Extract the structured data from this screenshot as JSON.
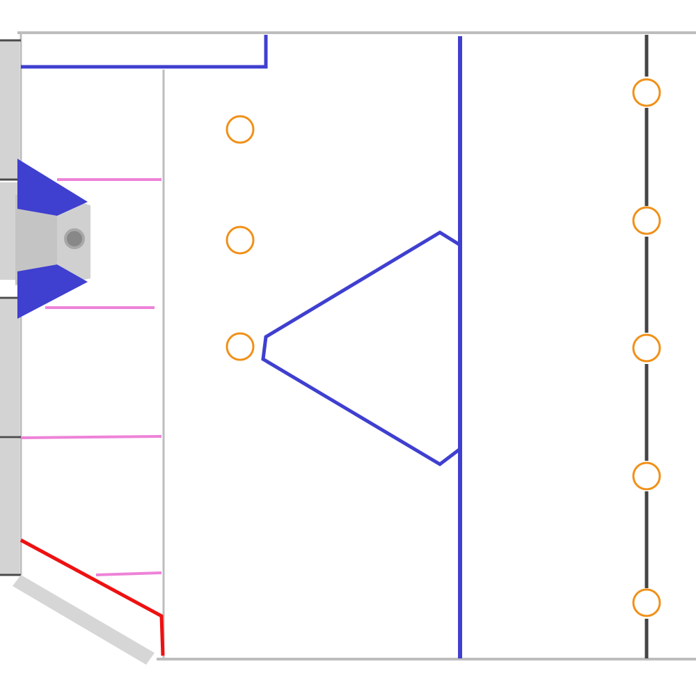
{
  "diagram": {
    "texts": [],
    "colors": {
      "background": "#ffffff",
      "border": "#bdbdbd",
      "wall": "#d3d3d3",
      "wall_dark": "#c4c4c4",
      "tick": "#4a4a4a",
      "blue": "#3f3fd0",
      "pink": "#ee82d8",
      "red": "#ee1111",
      "dashed_line": "#444444",
      "marker": "#f09018",
      "pole": "#888888"
    },
    "markers": {
      "column_left_count": 3,
      "column_right_count": 5,
      "shape": "circle-outline"
    },
    "lanes": {
      "pink_line_count": 4
    }
  }
}
